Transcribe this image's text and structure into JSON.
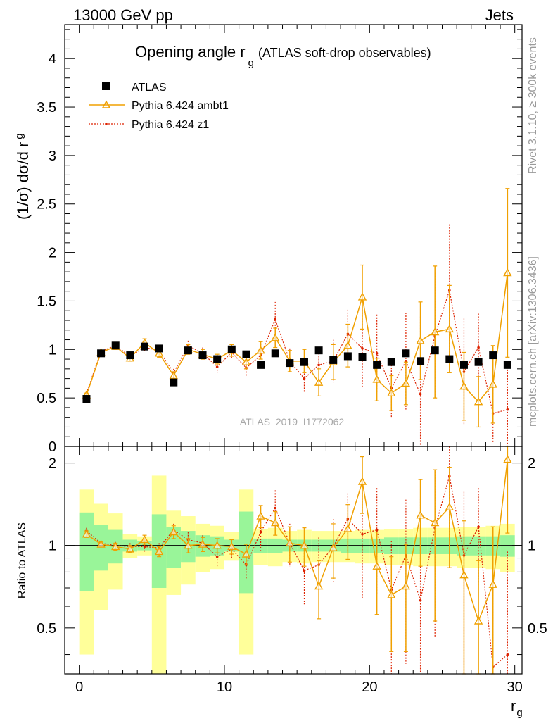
{
  "header": {
    "left": "13000 GeV pp",
    "right": "Jets"
  },
  "side_text": {
    "rivet": "Rivet 3.1.10, ≥ 300k events",
    "mcplots": "mcplots.cern.ch [arXiv:1306.3436]"
  },
  "watermark": "ATLAS_2019_I1772062",
  "legend": {
    "atlas": "ATLAS",
    "ambt1": "Pythia 6.424 ambt1",
    "z1": "Pythia 6.424 z1"
  },
  "colors": {
    "ambt1": "#f0a000",
    "z1": "#dd2200",
    "band_inner": "#99f599",
    "band_outer": "#ffff9a",
    "data": "#000000"
  },
  "chart_data": [
    {
      "type": "scatter",
      "panel": "main",
      "title_main": "Opening angle r",
      "title_sub": "g",
      "title_tail": "(ATLAS soft-drop observables)",
      "ylabel": "(1/σ) dσ/d r",
      "ylabel_sub": "g",
      "xlim": [
        -1,
        30.5
      ],
      "ylim": [
        0,
        4.35
      ],
      "yticks": [
        0,
        0.5,
        1,
        1.5,
        2,
        2.5,
        3,
        3.5,
        4
      ],
      "ytick_labels": [
        "0",
        "0.5",
        "1",
        "1.5",
        "2",
        "2.5",
        "3",
        "3.5",
        "4"
      ],
      "x": [
        0.5,
        1.5,
        2.5,
        3.5,
        4.5,
        5.5,
        6.5,
        7.5,
        8.5,
        9.5,
        10.5,
        11.5,
        12.5,
        13.5,
        14.5,
        15.5,
        16.5,
        17.5,
        18.5,
        19.5,
        20.5,
        21.5,
        22.5,
        23.5,
        24.5,
        25.5,
        26.5,
        27.5,
        28.5,
        29.5
      ],
      "series": [
        {
          "name": "ATLAS",
          "values": [
            0.49,
            0.96,
            1.04,
            0.94,
            1.03,
            1.01,
            0.66,
            0.99,
            0.94,
            0.9,
            1.0,
            0.95,
            0.84,
            0.96,
            0.86,
            0.87,
            0.99,
            0.89,
            0.93,
            0.92,
            0.84,
            0.87,
            0.96,
            0.88,
            0.99,
            0.9,
            0.84,
            0.87,
            0.94,
            0.84
          ]
        },
        {
          "name": "Pythia 6.424 ambt1",
          "values": [
            0.53,
            0.97,
            1.03,
            0.91,
            1.07,
            0.96,
            0.73,
            1.0,
            0.95,
            0.9,
            0.99,
            0.87,
            0.99,
            1.12,
            0.88,
            0.88,
            0.66,
            0.87,
            1.04,
            1.54,
            0.69,
            0.55,
            0.65,
            1.09,
            1.18,
            1.21,
            0.62,
            0.46,
            0.64,
            1.79
          ],
          "errors": [
            0.02,
            0.02,
            0.03,
            0.03,
            0.04,
            0.04,
            0.04,
            0.05,
            0.05,
            0.05,
            0.06,
            0.07,
            0.09,
            0.1,
            0.11,
            0.12,
            0.14,
            0.18,
            0.22,
            0.33,
            0.22,
            0.18,
            0.22,
            0.4,
            0.68,
            0.45,
            0.35,
            0.26,
            0.4,
            0.87
          ]
        },
        {
          "name": "Pythia 6.424 z1",
          "values": [
            0.55,
            0.98,
            1.04,
            0.93,
            1.02,
            0.99,
            0.76,
            1.04,
            0.96,
            0.82,
            0.97,
            0.81,
            0.94,
            1.31,
            0.88,
            0.7,
            0.84,
            0.88,
            1.16,
            1.01,
            0.96,
            0.6,
            0.88,
            0.54,
            1.14,
            1.61,
            0.77,
            1.02,
            0.34,
            0.38
          ],
          "errors": [
            0.02,
            0.02,
            0.03,
            0.03,
            0.04,
            0.04,
            0.04,
            0.05,
            0.06,
            0.06,
            0.07,
            0.08,
            0.12,
            0.18,
            0.13,
            0.14,
            0.18,
            0.22,
            0.25,
            0.4,
            0.4,
            0.3,
            0.5,
            0.8,
            0.65,
            0.68,
            0.55,
            0.35,
            0.3,
            0.5
          ]
        }
      ]
    },
    {
      "type": "scatter",
      "panel": "ratio",
      "ylabel": "Ratio to ATLAS",
      "xlabel": "r",
      "xlabel_sub": "g",
      "xlim": [
        -1,
        30.5
      ],
      "xticks": [
        0,
        10,
        20,
        30
      ],
      "xtick_labels": [
        "0",
        "10",
        "20",
        "30"
      ],
      "ylim": [
        0.34,
        2.3
      ],
      "yticks": [
        0.5,
        1,
        2
      ],
      "ytick_labels": [
        "0.5",
        "1",
        "2"
      ],
      "x": [
        0.5,
        1.5,
        2.5,
        3.5,
        4.5,
        5.5,
        6.5,
        7.5,
        8.5,
        9.5,
        10.5,
        11.5,
        12.5,
        13.5,
        14.5,
        15.5,
        16.5,
        17.5,
        18.5,
        19.5,
        20.5,
        21.5,
        22.5,
        23.5,
        24.5,
        25.5,
        26.5,
        27.5,
        28.5,
        29.5
      ],
      "band_inner": [
        0.32,
        0.19,
        0.14,
        0.05,
        0.04,
        0.3,
        0.17,
        0.13,
        0.09,
        0.08,
        0.05,
        0.33,
        0.06,
        0.06,
        0.05,
        0.05,
        0.05,
        0.05,
        0.06,
        0.06,
        0.06,
        0.07,
        0.07,
        0.07,
        0.07,
        0.07,
        0.08,
        0.08,
        0.08,
        0.09
      ],
      "band_outer": [
        0.6,
        0.42,
        0.31,
        0.1,
        0.08,
        0.8,
        0.34,
        0.28,
        0.2,
        0.18,
        0.12,
        0.6,
        0.15,
        0.16,
        0.13,
        0.14,
        0.13,
        0.13,
        0.13,
        0.14,
        0.14,
        0.15,
        0.15,
        0.16,
        0.16,
        0.16,
        0.17,
        0.17,
        0.18,
        0.2
      ],
      "series": [
        {
          "name": "Pythia 6.424 ambt1",
          "values": [
            1.1,
            1.01,
            0.99,
            0.97,
            1.05,
            0.95,
            1.12,
            1.0,
            1.01,
            1.0,
            0.99,
            0.93,
            1.28,
            1.21,
            1.02,
            1.0,
            0.71,
            0.98,
            1.15,
            1.71,
            0.84,
            0.66,
            0.71,
            1.29,
            1.21,
            1.38,
            0.78,
            0.53,
            0.72,
            2.06
          ],
          "errors": [
            0.03,
            0.02,
            0.03,
            0.03,
            0.04,
            0.04,
            0.06,
            0.06,
            0.06,
            0.06,
            0.06,
            0.08,
            0.12,
            0.12,
            0.15,
            0.16,
            0.17,
            0.22,
            0.26,
            0.4,
            0.28,
            0.25,
            0.3,
            0.45,
            0.68,
            0.55,
            0.45,
            0.35,
            0.45,
            0.95
          ]
        },
        {
          "name": "Pythia 6.424 z1",
          "values": [
            1.13,
            1.02,
            1.0,
            0.99,
            0.99,
            0.98,
            1.14,
            1.05,
            1.02,
            0.91,
            0.97,
            0.85,
            1.12,
            1.37,
            1.02,
            0.81,
            0.85,
            0.99,
            1.25,
            1.1,
            1.14,
            0.69,
            0.92,
            0.63,
            1.16,
            1.79,
            0.92,
            1.17,
            0.36,
            0.4
          ],
          "errors": [
            0.03,
            0.02,
            0.03,
            0.03,
            0.04,
            0.04,
            0.06,
            0.07,
            0.07,
            0.07,
            0.08,
            0.1,
            0.16,
            0.22,
            0.18,
            0.2,
            0.22,
            0.26,
            0.3,
            0.46,
            0.48,
            0.35,
            0.55,
            0.85,
            0.7,
            0.75,
            0.65,
            0.45,
            0.35,
            0.55
          ]
        }
      ]
    }
  ]
}
